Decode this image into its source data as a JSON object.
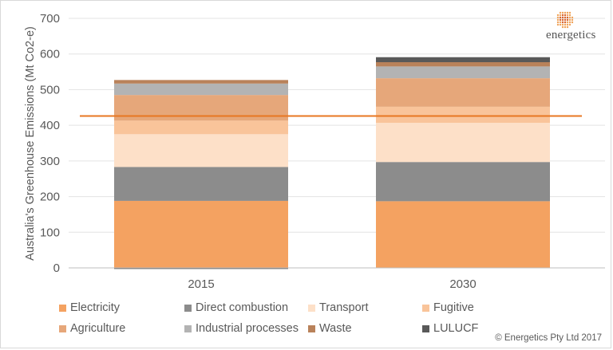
{
  "chart_data": {
    "type": "bar",
    "stacked": true,
    "categories": [
      "2015",
      "2030"
    ],
    "ylabel": "Australia's Greenhouse  Emissions (Mt Co2-e)",
    "ylim": [
      0,
      700
    ],
    "yticks": [
      0,
      100,
      200,
      300,
      400,
      500,
      600,
      700
    ],
    "grid": true,
    "legend_position": "bottom",
    "series": [
      {
        "name": "Electricity",
        "color": "#f4a261",
        "values": [
          188,
          187
        ]
      },
      {
        "name": "Direct combustion",
        "color": "#8c8c8c",
        "values": [
          95,
          110
        ]
      },
      {
        "name": "Transport",
        "color": "#fde0c8",
        "values": [
          92,
          110
        ]
      },
      {
        "name": "Fugitive",
        "color": "#f9c49a",
        "values": [
          38,
          45
        ]
      },
      {
        "name": "Agriculture",
        "color": "#e6a77a",
        "values": [
          72,
          80
        ]
      },
      {
        "name": "Industrial processes",
        "color": "#b3b3b3",
        "values": [
          32,
          33
        ]
      },
      {
        "name": "Waste",
        "color": "#b9825a",
        "values": [
          10,
          12
        ]
      },
      {
        "name": "LULUCF",
        "color": "#595959",
        "values": [
          -3,
          14
        ]
      }
    ],
    "reference_line": {
      "value": 426,
      "color": "#e87722"
    }
  },
  "logo": {
    "text": "energetics"
  },
  "copyright": "© Energetics Pty Ltd 2017"
}
